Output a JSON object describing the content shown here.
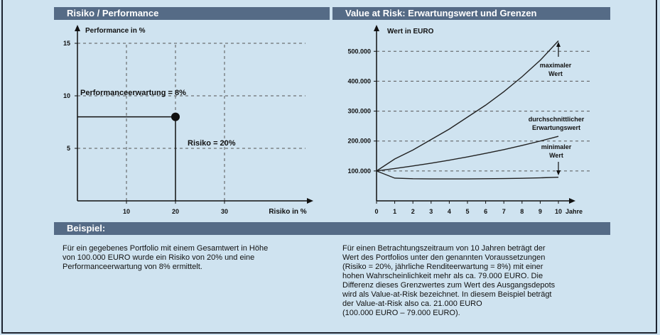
{
  "headers": {
    "left": "Risiko  /  Performance",
    "right": "Value at Risk: Erwartungswert und Grenzen",
    "example": "Beispiel:"
  },
  "paragraphs": {
    "left": "Für ein gegebenes Portfolio mit einem Gesamtwert in Höhe\nvon 100.000 EURO wurde ein Risiko von 20% und eine\nPerformanceerwartung von 8% ermittelt.",
    "right": "Für einen Betrachtungszeitraum von 10 Jahren beträgt der\nWert des Portfolios unter den genannten Voraussetzungen\n(Risiko = 20%,  jährliche Renditeerwartung = 8%) mit einer\nhohen Wahrscheinlichkeit mehr als ca. 79.000 EURO. Die\nDifferenz dieses Grenzwertes zum Wert des Ausgangsdepots\nwird als Value-at-Risk bezeichnet. In diesem Beispiel beträgt\nder Value-at-Risk also ca. 21.000 EURO\n(100.000 EURO – 79.000 EURO)."
  },
  "colors": {
    "header_bg": "#556b86",
    "page_bg": "#cfe3f0",
    "ink": "#111111",
    "grid": "#555555"
  },
  "chart_data": [
    {
      "type": "scatter",
      "ylabel": "Performance in %",
      "xlabel": "Risiko in %",
      "xlim": [
        0,
        40
      ],
      "ylim": [
        0,
        16
      ],
      "xticks": [
        "10",
        "20",
        "30"
      ],
      "yticks": [
        "5",
        "10",
        "15"
      ],
      "grid": true,
      "points": [
        {
          "x": 20,
          "y": 8
        }
      ],
      "annotations": {
        "performance": "Performanceerwartung = 8%",
        "risk": "Risiko = 20%"
      }
    },
    {
      "type": "line",
      "ylabel": "Wert in EURO",
      "xlabel": "Jahre",
      "x": [
        0,
        1,
        2,
        3,
        4,
        5,
        6,
        7,
        8,
        9,
        10
      ],
      "xticks": [
        "0",
        "1",
        "2",
        "3",
        "4",
        "5",
        "6",
        "7",
        "8",
        "9",
        "10"
      ],
      "yticks": [
        "100.000",
        "200.000",
        "300.000",
        "400.000",
        "500.000"
      ],
      "ylim": [
        0,
        560000
      ],
      "grid": true,
      "series": [
        {
          "name": "maximaler Wert",
          "values": [
            100000,
            140000,
            170000,
            205000,
            240000,
            280000,
            320000,
            365000,
            415000,
            470000,
            535000
          ]
        },
        {
          "name": "durchschnittlicher Erwartungswert",
          "values": [
            100000,
            108000,
            116600,
            126000,
            136000,
            146900,
            158700,
            171400,
            185100,
            199900,
            215900
          ]
        },
        {
          "name": "minimaler Wert",
          "values": [
            100000,
            76000,
            74000,
            73500,
            73500,
            73500,
            74000,
            74500,
            75500,
            77000,
            79000
          ]
        }
      ],
      "annotations": {
        "max_label": [
          "maximaler",
          "Wert"
        ],
        "mean_label": [
          "durchschnittlicher",
          "Erwartungswert"
        ],
        "min_label": [
          "minimaler",
          "Wert"
        ]
      }
    }
  ]
}
